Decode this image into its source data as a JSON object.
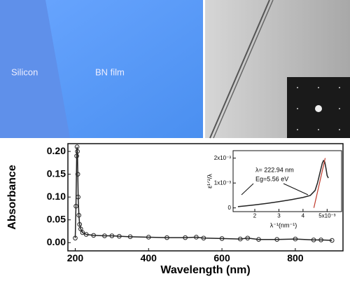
{
  "photo_labels": {
    "left": [
      "Silicon",
      "BN film"
    ]
  },
  "chart_data": [
    {
      "type": "line",
      "y_label": "Absorbance",
      "x_label": "Wavelength (nm)",
      "x": [
        200,
        202,
        204,
        205,
        206,
        207,
        208,
        210,
        212,
        215,
        220,
        230,
        250,
        280,
        300,
        320,
        350,
        400,
        450,
        500,
        530,
        550,
        600,
        650,
        670,
        700,
        750,
        800,
        850,
        870,
        900
      ],
      "series": [
        {
          "color": "#222222",
          "values": [
            0.01,
            0.08,
            0.19,
            0.21,
            0.2,
            0.15,
            0.1,
            0.06,
            0.04,
            0.03,
            0.022,
            0.018,
            0.016,
            0.015,
            0.015,
            0.014,
            0.013,
            0.012,
            0.011,
            0.011,
            0.012,
            0.01,
            0.009,
            0.008,
            0.01,
            0.007,
            0.007,
            0.008,
            0.006,
            0.006,
            0.005
          ]
        }
      ],
      "xlim": [
        180,
        930
      ],
      "ylim": [
        -0.018,
        0.217
      ],
      "xticks": [
        200,
        400,
        600,
        800
      ],
      "yticks": [
        {
          "value": 0,
          "label": "0.00"
        },
        {
          "value": 0.05,
          "label": "0.05"
        },
        {
          "value": 0.1,
          "label": "0.10"
        },
        {
          "value": 0.15,
          "label": "0.15"
        },
        {
          "value": 0.2,
          "label": "0.20"
        }
      ]
    },
    {
      "type": "line",
      "y_label": "ε¹ᐟ²/λ",
      "x_label": "λ⁻¹(nm⁻¹)",
      "annotations": [
        "λ= 222.94 nm",
        "Eg=5.56 eV"
      ],
      "x": [
        1.3,
        1.6,
        2,
        2.5,
        3,
        3.5,
        4,
        4.3,
        4.5,
        4.6,
        4.7,
        4.8,
        4.85,
        4.9,
        4.95,
        5.0,
        5.05
      ],
      "series": [
        {
          "color": "#222222",
          "values": [
            0.05,
            0.08,
            0.12,
            0.18,
            0.25,
            0.33,
            0.42,
            0.5,
            0.7,
            1.0,
            1.4,
            1.8,
            1.9,
            1.85,
            1.6,
            1.3,
            1.2
          ]
        },
        {
          "color": "#c0392b",
          "x": [
            4.45,
            4.92
          ],
          "values": [
            0,
            2
          ]
        }
      ],
      "xlim": [
        1.1,
        5.6
      ],
      "ylim": [
        -0.15,
        2.3
      ],
      "xticks": [
        2,
        3,
        4,
        {
          "value": 5,
          "label": "5x10⁻³"
        }
      ],
      "yticks": [
        0,
        {
          "value": 1,
          "label": "1x10⁻³"
        },
        {
          "value": 2,
          "label": "2x10⁻³"
        }
      ]
    }
  ]
}
